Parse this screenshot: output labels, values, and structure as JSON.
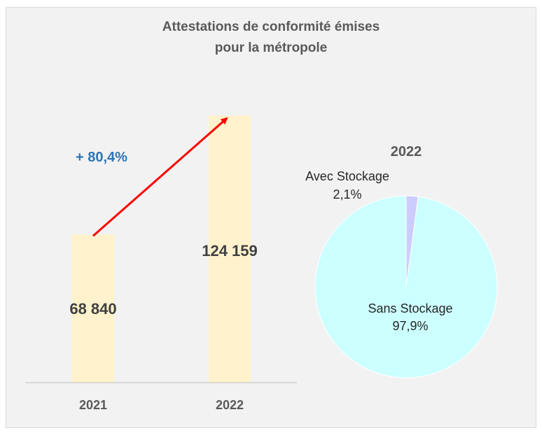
{
  "chart_data": [
    {
      "type": "bar",
      "title": [
        "Attestations de conformité émises",
        "pour la métropole"
      ],
      "categories": [
        "2021",
        "2022"
      ],
      "values": [
        68840,
        124159
      ],
      "value_labels": [
        "68 840",
        "124 159"
      ],
      "growth_label": "+ 80,4%",
      "colors": {
        "bar": "#fff2cc",
        "arrow": "#ff0000",
        "growth": "#2e75b6",
        "value_text": "#404040",
        "axis_text": "#595959"
      }
    },
    {
      "type": "pie",
      "title": "2022",
      "slices": [
        {
          "name": "Sans Stockage",
          "value": 97.9,
          "label": "97,9%",
          "color": "#ccffff"
        },
        {
          "name": "Avec Stockage",
          "value": 2.1,
          "label": "2,1%",
          "color": "#ccccff"
        }
      ]
    }
  ]
}
